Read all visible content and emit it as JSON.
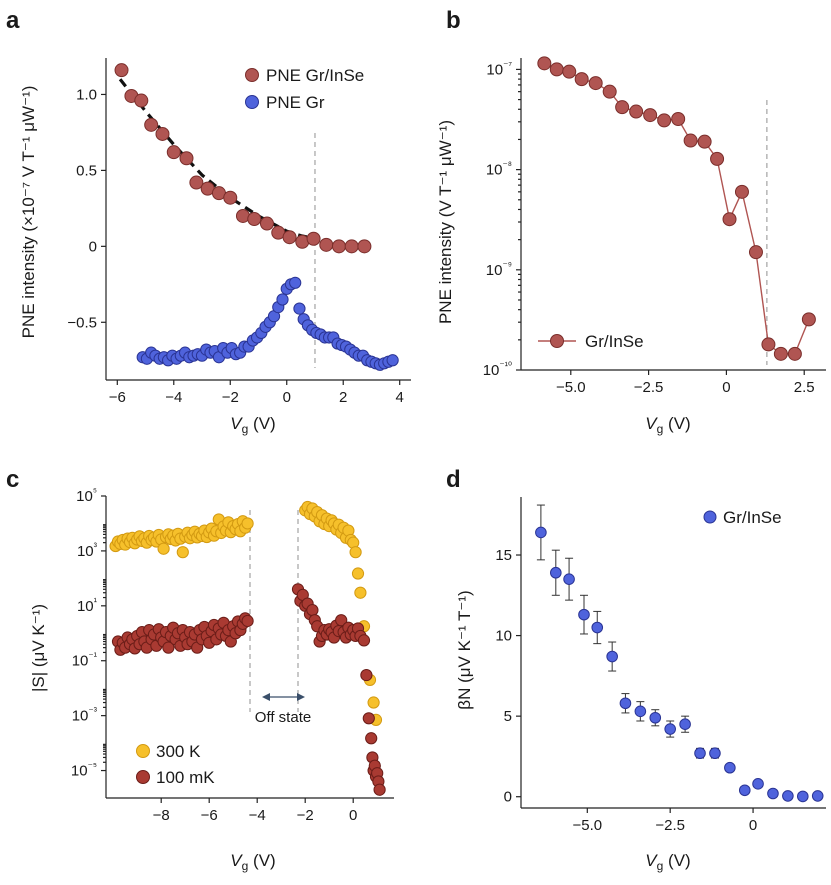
{
  "panels": {
    "a": {
      "label": "a"
    },
    "b": {
      "label": "b"
    },
    "c": {
      "label": "c"
    },
    "d": {
      "label": "d"
    }
  },
  "colors": {
    "red_fill": "#b05552",
    "red_edge": "#7a2e2b",
    "blue_fill": "#4f63dc",
    "blue_edge": "#2a3494",
    "yellow_fill": "#f6c02b",
    "yellow_edge": "#d39a12",
    "darkred_fill": "#a93a32",
    "darkred_edge": "#6b1d18",
    "guide": "#aaaaaa",
    "fit": "#111111"
  },
  "chart_data": [
    {
      "panel": "a",
      "type": "scatter",
      "xlabel": "V",
      "xlabel_sub": "g",
      "xlabel_unit": " (V)",
      "ylabel": "PNE intensity (×10⁻⁷ V T⁻¹ μW⁻¹)",
      "xlim": [
        -6.4,
        4.4
      ],
      "ylim": [
        -0.88,
        1.24
      ],
      "xticks": [
        -6,
        -4,
        -2,
        0,
        2,
        4
      ],
      "xtick_labels": [
        "−6",
        "−4",
        "−2",
        "0",
        "2",
        "4"
      ],
      "yticks": [
        -0.5,
        0,
        0.5,
        1.0
      ],
      "ytick_labels": [
        "−0.5",
        "0",
        "0.5",
        "1.0"
      ],
      "vline": 1.0,
      "legend": [
        "PNE Gr/InSe",
        "PNE Gr"
      ],
      "fit_curve": {
        "style": "dashed",
        "x": [
          -5.9,
          -5.0,
          -4.0,
          -3.0,
          -2.0,
          -1.0,
          0.0,
          0.5,
          1.0
        ],
        "y": [
          1.1,
          0.89,
          0.67,
          0.47,
          0.32,
          0.2,
          0.1,
          0.07,
          0.05
        ]
      },
      "series": [
        {
          "name": "PNE Gr/InSe",
          "x": [
            -5.85,
            -5.5,
            -5.15,
            -4.8,
            -4.4,
            -4.0,
            -3.55,
            -3.2,
            -2.8,
            -2.4,
            -2.0,
            -1.55,
            -1.15,
            -0.7,
            -0.3,
            0.1,
            0.55,
            0.95,
            1.4,
            1.85,
            2.3,
            2.75
          ],
          "y": [
            1.16,
            0.99,
            0.96,
            0.8,
            0.74,
            0.62,
            0.58,
            0.42,
            0.38,
            0.35,
            0.32,
            0.2,
            0.18,
            0.15,
            0.09,
            0.06,
            0.03,
            0.05,
            0.01,
            0.0,
            0.0,
            0.0
          ]
        },
        {
          "name": "PNE Gr",
          "x": [
            -5.1,
            -4.95,
            -4.8,
            -4.65,
            -4.5,
            -4.35,
            -4.2,
            -4.05,
            -3.9,
            -3.75,
            -3.6,
            -3.45,
            -3.3,
            -3.15,
            -3.0,
            -2.85,
            -2.7,
            -2.55,
            -2.4,
            -2.25,
            -2.1,
            -1.95,
            -1.8,
            -1.65,
            -1.5,
            -1.35,
            -1.2,
            -1.05,
            -0.9,
            -0.75,
            -0.6,
            -0.45,
            -0.3,
            -0.15,
            0.0,
            0.15,
            0.3,
            0.45,
            0.6,
            0.75,
            0.9,
            1.05,
            1.2,
            1.35,
            1.5,
            1.65,
            1.8,
            1.95,
            2.1,
            2.25,
            2.4,
            2.55,
            2.7,
            2.85,
            3.0,
            3.15,
            3.3,
            3.45,
            3.6,
            3.75
          ],
          "y": [
            -0.73,
            -0.74,
            -0.7,
            -0.72,
            -0.74,
            -0.73,
            -0.75,
            -0.72,
            -0.74,
            -0.72,
            -0.7,
            -0.73,
            -0.72,
            -0.71,
            -0.72,
            -0.68,
            -0.7,
            -0.69,
            -0.73,
            -0.67,
            -0.7,
            -0.67,
            -0.71,
            -0.7,
            -0.66,
            -0.66,
            -0.62,
            -0.6,
            -0.57,
            -0.53,
            -0.5,
            -0.46,
            -0.4,
            -0.35,
            -0.28,
            -0.25,
            -0.24,
            -0.41,
            -0.48,
            -0.52,
            -0.55,
            -0.57,
            -0.58,
            -0.6,
            -0.6,
            -0.6,
            -0.64,
            -0.65,
            -0.66,
            -0.68,
            -0.7,
            -0.72,
            -0.72,
            -0.75,
            -0.76,
            -0.77,
            -0.78,
            -0.77,
            -0.76,
            -0.75
          ]
        }
      ]
    },
    {
      "panel": "b",
      "type": "line",
      "yscale": "log",
      "xlabel": "V",
      "xlabel_sub": "g",
      "xlabel_unit": " (V)",
      "ylabel": "PNE intensity (V T⁻¹ μW⁻¹)",
      "xlim": [
        -6.6,
        3.2
      ],
      "ylim": [
        1e-10,
        1.3e-07
      ],
      "xticks": [
        -5.0,
        -2.5,
        0,
        2.5
      ],
      "xtick_labels": [
        "−5.0",
        "−2.5",
        "0",
        "2.5"
      ],
      "yticks": [
        1e-10,
        1e-09,
        1e-08,
        1e-07
      ],
      "ytick_labels": [
        "10⁻¹⁰",
        "10⁻⁹",
        "10⁻⁸",
        "10⁻⁷"
      ],
      "vline": 1.3,
      "legend": [
        "Gr/InSe"
      ],
      "series": [
        {
          "name": "Gr/InSe",
          "x": [
            -5.85,
            -5.45,
            -5.05,
            -4.65,
            -4.2,
            -3.75,
            -3.35,
            -2.9,
            -2.45,
            -2.0,
            -1.55,
            -1.15,
            -0.7,
            -0.3,
            0.1,
            0.5,
            0.95,
            1.35,
            1.75,
            2.2,
            2.65
          ],
          "y": [
            1.15e-07,
            1e-07,
            9.5e-08,
            8e-08,
            7.3e-08,
            6e-08,
            4.2e-08,
            3.8e-08,
            3.5e-08,
            3.1e-08,
            3.2e-08,
            1.95e-08,
            1.9e-08,
            1.28e-08,
            3.2e-09,
            6e-09,
            1.5e-09,
            1.8e-10,
            1.45e-10,
            1.45e-10,
            3.2e-10
          ]
        }
      ]
    },
    {
      "panel": "c",
      "type": "scatter",
      "yscale": "log",
      "xlabel": "V",
      "xlabel_sub": "g",
      "xlabel_unit": " (V)",
      "ylabel": "|S| (μV K⁻¹)",
      "xlim": [
        -10.3,
        1.7
      ],
      "ylim": [
        1e-06,
        100000.0
      ],
      "xticks": [
        -8,
        -6,
        -4,
        -2,
        0
      ],
      "xtick_labels": [
        "−8",
        "−6",
        "−4",
        "−2",
        "0"
      ],
      "yticks": [
        1e-05,
        0.001,
        0.1,
        10.0,
        1000.0,
        100000.0
      ],
      "ytick_labels": [
        "10⁻⁵",
        "10⁻³",
        "10⁻¹",
        "10¹",
        "10³",
        "10⁵"
      ],
      "vlines": [
        -4.3,
        -2.3
      ],
      "annotation": "Off state",
      "legend": [
        "300 K",
        "100 mK"
      ],
      "series": [
        {
          "name": "300 K",
          "x": [
            -9.9,
            -9.8,
            -9.7,
            -9.6,
            -9.5,
            -9.4,
            -9.3,
            -9.2,
            -9.1,
            -9.0,
            -8.9,
            -8.8,
            -8.7,
            -8.6,
            -8.5,
            -8.4,
            -8.3,
            -8.2,
            -8.1,
            -8.0,
            -7.9,
            -7.8,
            -7.7,
            -7.6,
            -7.5,
            -7.4,
            -7.3,
            -7.2,
            -7.1,
            -7.0,
            -6.9,
            -6.8,
            -6.7,
            -6.6,
            -6.5,
            -6.4,
            -6.3,
            -6.2,
            -6.1,
            -6.0,
            -5.9,
            -5.8,
            -5.7,
            -5.6,
            -5.5,
            -5.4,
            -5.3,
            -5.2,
            -5.1,
            -5.0,
            -4.9,
            -4.8,
            -4.7,
            -4.6,
            -4.5,
            -4.4,
            -2.0,
            -1.9,
            -1.8,
            -1.7,
            -1.6,
            -1.5,
            -1.4,
            -1.3,
            -1.2,
            -1.1,
            -1.0,
            -0.9,
            -0.8,
            -0.7,
            -0.6,
            -0.5,
            -0.4,
            -0.3,
            -0.2,
            -0.1,
            0.0,
            0.1,
            0.2,
            0.3,
            0.45,
            0.7,
            0.85,
            0.95
          ],
          "y": [
            1500,
            2200,
            1800,
            2500,
            1700,
            2800,
            2100,
            3000,
            1900,
            2600,
            3400,
            2300,
            2900,
            2000,
            3500,
            2500,
            3100,
            2200,
            3800,
            2600,
            1200,
            3200,
            4000,
            2700,
            3600,
            2400,
            4200,
            2800,
            900,
            3300,
            4600,
            2900,
            3800,
            5000,
            3100,
            4200,
            3500,
            5500,
            3200,
            4700,
            6500,
            3600,
            5200,
            14000,
            4500,
            7800,
            5500,
            11000,
            4800,
            8000,
            6200,
            9500,
            5200,
            12000,
            7000,
            10000,
            30000,
            40000,
            22000,
            35000,
            18000,
            26000,
            12000,
            20000,
            9500,
            15000,
            8000,
            13000,
            10000,
            6000,
            9000,
            4500,
            7000,
            3000,
            5500,
            2500,
            2000,
            900,
            150,
            30,
            1.8,
            0.02,
            0.003,
            0.0007
          ]
        },
        {
          "name": "100 mK",
          "x": [
            -9.8,
            -9.7,
            -9.6,
            -9.5,
            -9.4,
            -9.3,
            -9.2,
            -9.1,
            -9.0,
            -8.9,
            -8.8,
            -8.7,
            -8.6,
            -8.5,
            -8.4,
            -8.3,
            -8.2,
            -8.1,
            -8.0,
            -7.9,
            -7.8,
            -7.7,
            -7.6,
            -7.5,
            -7.4,
            -7.3,
            -7.2,
            -7.1,
            -7.0,
            -6.9,
            -6.8,
            -6.7,
            -6.6,
            -6.5,
            -6.4,
            -6.3,
            -6.2,
            -6.1,
            -6.0,
            -5.9,
            -5.8,
            -5.7,
            -5.6,
            -5.5,
            -5.4,
            -5.3,
            -5.2,
            -5.1,
            -5.0,
            -4.9,
            -4.8,
            -4.7,
            -4.6,
            -4.5,
            -4.4,
            -2.3,
            -2.2,
            -2.1,
            -2.0,
            -1.9,
            -1.8,
            -1.7,
            -1.6,
            -1.5,
            -1.4,
            -1.3,
            -1.2,
            -1.1,
            -1.0,
            -0.9,
            -0.8,
            -0.7,
            -0.6,
            -0.5,
            -0.4,
            -0.3,
            -0.2,
            -0.1,
            0.0,
            0.1,
            0.2,
            0.3,
            0.45,
            0.55,
            0.65,
            0.75,
            0.8,
            0.85,
            0.9,
            0.95,
            1.0,
            1.05,
            1.1
          ],
          "y": [
            0.5,
            0.25,
            0.45,
            0.3,
            0.7,
            0.4,
            0.6,
            0.28,
            0.8,
            0.4,
            1.1,
            0.5,
            0.3,
            1.3,
            0.6,
            0.9,
            0.35,
            1.4,
            0.7,
            0.5,
            1.1,
            0.3,
            0.8,
            1.6,
            0.6,
            1.0,
            0.35,
            1.3,
            0.7,
            0.4,
            1.1,
            0.5,
            0.9,
            0.3,
            1.3,
            0.6,
            1.7,
            0.8,
            0.45,
            1.2,
            2.0,
            0.6,
            1.5,
            0.9,
            2.4,
            0.8,
            1.3,
            0.5,
            1.8,
            1.0,
            2.7,
            1.3,
            2.2,
            3.5,
            2.8,
            40,
            15,
            25,
            10,
            12,
            5,
            7,
            3,
            1.8,
            0.5,
            0.8,
            1.3,
            0.9,
            1.4,
            1.1,
            0.7,
            1.9,
            1.2,
            3.0,
            1.1,
            0.7,
            1.6,
            0.9,
            1.3,
            0.8,
            1.5,
            0.8,
            0.55,
            0.03,
            0.0008,
            0.00015,
            3e-05,
            1e-05,
            1.5e-05,
            6e-06,
            8e-06,
            4e-06,
            2e-06
          ]
        }
      ]
    },
    {
      "panel": "d",
      "type": "scatter",
      "xlabel": "V",
      "xlabel_sub": "g",
      "xlabel_unit": " (V)",
      "ylabel": "βN (μV K⁻¹ T⁻¹)",
      "xlim": [
        -7.0,
        2.2
      ],
      "ylim": [
        -0.7,
        18.6
      ],
      "xticks": [
        -5.0,
        -2.5,
        0
      ],
      "xtick_labels": [
        "−5.0",
        "−2.5",
        "0"
      ],
      "yticks": [
        0,
        5,
        10,
        15
      ],
      "ytick_labels": [
        "0",
        "5",
        "10",
        "15"
      ],
      "legend": [
        "Gr/InSe"
      ],
      "series": [
        {
          "name": "Gr/InSe",
          "x": [
            -6.4,
            -5.95,
            -5.55,
            -5.1,
            -4.7,
            -4.25,
            -3.85,
            -3.4,
            -2.95,
            -2.5,
            -2.05,
            -1.6,
            -1.15,
            -0.7,
            -0.25,
            0.15,
            0.6,
            1.05,
            1.5,
            1.95
          ],
          "y": [
            16.4,
            13.9,
            13.5,
            11.3,
            10.5,
            8.7,
            5.8,
            5.3,
            4.9,
            4.2,
            4.5,
            2.7,
            2.7,
            1.8,
            0.4,
            0.8,
            0.2,
            0.05,
            0.02,
            0.05
          ],
          "err": [
            1.7,
            1.4,
            1.3,
            1.2,
            1.0,
            0.9,
            0.6,
            0.6,
            0.5,
            0.5,
            0.5,
            0.3,
            0.3,
            0.0,
            0.0,
            0.0,
            0.0,
            0.0,
            0.0,
            0.0
          ]
        }
      ]
    }
  ]
}
